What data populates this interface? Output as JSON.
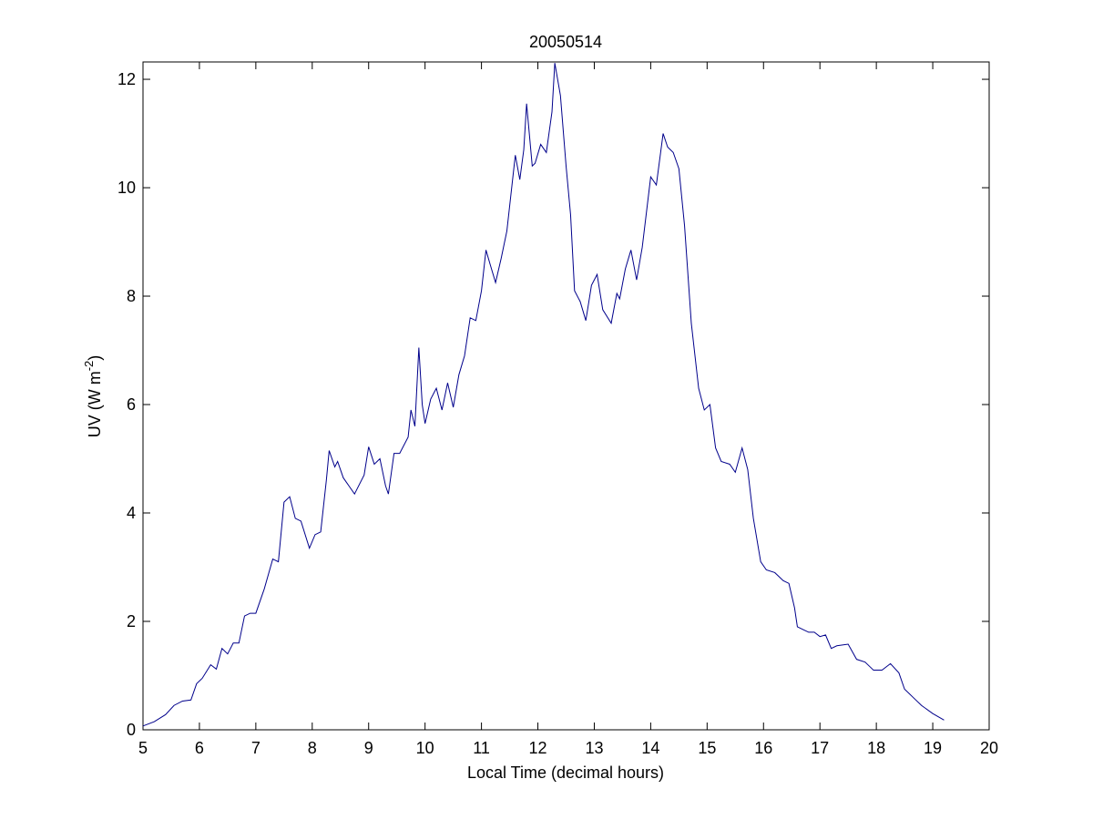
{
  "chart_data": {
    "type": "line",
    "title": "20050514",
    "xlabel": "Local Time (decimal hours)",
    "ylabel": [
      "UV (W m",
      "-2",
      ")"
    ],
    "x": [
      5.0,
      5.2,
      5.4,
      5.55,
      5.7,
      5.85,
      5.95,
      6.05,
      6.2,
      6.3,
      6.4,
      6.5,
      6.6,
      6.7,
      6.8,
      6.9,
      7.0,
      7.15,
      7.3,
      7.4,
      7.5,
      7.6,
      7.7,
      7.8,
      7.95,
      8.05,
      8.15,
      8.25,
      8.3,
      8.4,
      8.45,
      8.55,
      8.65,
      8.75,
      8.92,
      9.0,
      9.1,
      9.2,
      9.3,
      9.35,
      9.45,
      9.55,
      9.7,
      9.75,
      9.82,
      9.89,
      9.95,
      10.0,
      10.1,
      10.2,
      10.3,
      10.4,
      10.5,
      10.6,
      10.7,
      10.8,
      10.9,
      11.0,
      11.08,
      11.15,
      11.25,
      11.35,
      11.45,
      11.6,
      11.68,
      11.75,
      11.8,
      11.9,
      11.95,
      12.05,
      12.15,
      12.25,
      12.3,
      12.4,
      12.5,
      12.58,
      12.65,
      12.75,
      12.85,
      12.95,
      13.05,
      13.15,
      13.3,
      13.4,
      13.45,
      13.55,
      13.65,
      13.75,
      13.85,
      14.0,
      14.1,
      14.22,
      14.3,
      14.4,
      14.5,
      14.6,
      14.72,
      14.85,
      14.95,
      15.05,
      15.15,
      15.25,
      15.4,
      15.5,
      15.62,
      15.72,
      15.82,
      15.95,
      16.05,
      16.2,
      16.35,
      16.45,
      16.55,
      16.6,
      16.7,
      16.8,
      16.9,
      17.0,
      17.1,
      17.2,
      17.3,
      17.5,
      17.65,
      17.8,
      17.95,
      18.1,
      18.25,
      18.4,
      18.5,
      18.65,
      18.8,
      19.0,
      19.2
    ],
    "series": [
      {
        "color": "#00008b",
        "values": [
          0.07,
          0.15,
          0.28,
          0.45,
          0.53,
          0.55,
          0.85,
          0.95,
          1.2,
          1.12,
          1.5,
          1.4,
          1.6,
          1.6,
          2.1,
          2.15,
          2.15,
          2.6,
          3.15,
          3.1,
          4.2,
          4.3,
          3.9,
          3.85,
          3.35,
          3.6,
          3.65,
          4.6,
          5.15,
          4.85,
          4.95,
          4.65,
          4.5,
          4.35,
          4.7,
          5.22,
          4.9,
          5.0,
          4.5,
          4.35,
          5.1,
          5.1,
          5.4,
          5.9,
          5.6,
          7.05,
          6.0,
          5.65,
          6.1,
          6.3,
          5.9,
          6.4,
          5.95,
          6.55,
          6.9,
          7.6,
          7.55,
          8.1,
          8.85,
          8.6,
          8.25,
          8.7,
          9.2,
          10.6,
          10.15,
          10.7,
          11.55,
          10.4,
          10.45,
          10.8,
          10.65,
          11.4,
          12.3,
          11.7,
          10.4,
          9.5,
          8.1,
          7.9,
          7.55,
          8.2,
          8.4,
          7.75,
          7.5,
          8.05,
          7.95,
          8.5,
          8.85,
          8.3,
          8.9,
          10.2,
          10.05,
          11.0,
          10.75,
          10.65,
          10.35,
          9.3,
          7.5,
          6.3,
          5.9,
          6.0,
          5.2,
          4.95,
          4.9,
          4.75,
          5.2,
          4.8,
          3.9,
          3.1,
          2.95,
          2.9,
          2.75,
          2.7,
          2.25,
          1.9,
          1.85,
          1.8,
          1.8,
          1.72,
          1.75,
          1.5,
          1.55,
          1.58,
          1.3,
          1.25,
          1.1,
          1.1,
          1.22,
          1.05,
          0.75,
          0.6,
          0.45,
          0.3,
          0.18
        ]
      }
    ],
    "xlim": [
      5,
      20
    ],
    "xticks": [
      5,
      6,
      7,
      8,
      9,
      10,
      11,
      12,
      13,
      14,
      15,
      16,
      17,
      18,
      19,
      20
    ],
    "ylim": [
      0,
      12.32
    ],
    "yticks": [
      0,
      2,
      4,
      6,
      8,
      10,
      12
    ]
  }
}
